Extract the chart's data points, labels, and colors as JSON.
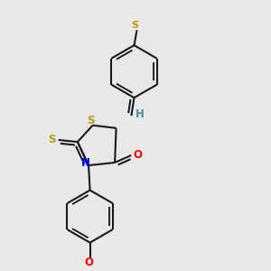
{
  "background_color": "#e8e8e8",
  "bond_color": "#1a1a1a",
  "sulfur_color": "#b8a000",
  "nitrogen_color": "#0000ff",
  "oxygen_color": "#ff0000",
  "teal_color": "#4a9090",
  "line_width": 1.5,
  "font_size": 8.5,
  "fig_width": 3.0,
  "fig_height": 3.0,
  "dpi": 100,
  "xlim": [
    0.05,
    0.75
  ],
  "ylim": [
    0.03,
    0.97
  ]
}
